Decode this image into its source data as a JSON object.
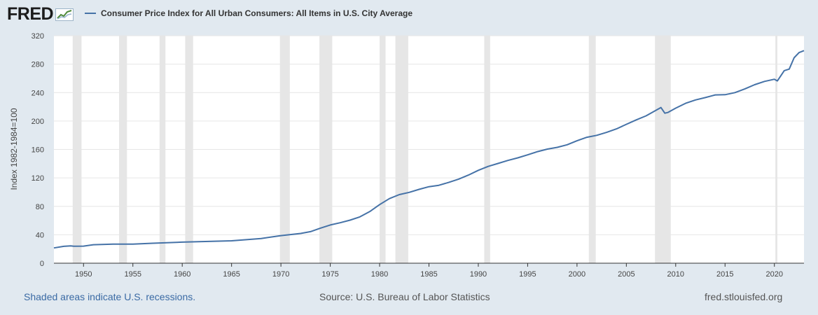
{
  "header": {
    "logo_text": "FRED",
    "legend_label": "Consumer Price Index for All Urban Consumers: All Items in U.S. City Average",
    "series_color": "#4572a7"
  },
  "footer": {
    "note": "Shaded areas indicate U.S. recessions.",
    "source": "Source: U.S. Bureau of Labor Statistics",
    "site": "fred.stlouisfed.org"
  },
  "chart_data": {
    "type": "line",
    "title": "",
    "xlabel": "",
    "ylabel": "Index 1982-1984=100",
    "xlim": [
      1947,
      2023
    ],
    "ylim": [
      0,
      320
    ],
    "x_ticks": [
      1950,
      1955,
      1960,
      1965,
      1970,
      1975,
      1980,
      1985,
      1990,
      1995,
      2000,
      2005,
      2010,
      2015,
      2020
    ],
    "y_ticks": [
      0,
      40,
      80,
      120,
      160,
      200,
      240,
      280,
      320
    ],
    "grid": true,
    "legend_position": "top-left",
    "recessions": [
      [
        1948.9,
        1949.8
      ],
      [
        1953.6,
        1954.4
      ],
      [
        1957.7,
        1958.3
      ],
      [
        1960.3,
        1961.1
      ],
      [
        1969.9,
        1970.9
      ],
      [
        1973.9,
        1975.2
      ],
      [
        1980.0,
        1980.6
      ],
      [
        1981.6,
        1982.9
      ],
      [
        1990.6,
        1991.2
      ],
      [
        2001.2,
        2001.9
      ],
      [
        2007.9,
        2009.5
      ],
      [
        2020.1,
        2020.3
      ]
    ],
    "series": [
      {
        "name": "Consumer Price Index for All Urban Consumers: All Items in U.S. City Average",
        "x": [
          1947,
          1948,
          1948.7,
          1949,
          1950,
          1951,
          1953,
          1955,
          1957,
          1960,
          1965,
          1968,
          1970,
          1972,
          1973,
          1974,
          1975,
          1976,
          1977,
          1978,
          1979,
          1980,
          1981,
          1982,
          1983,
          1984,
          1985,
          1986,
          1987,
          1988,
          1989,
          1990,
          1991,
          1992,
          1993,
          1994,
          1995,
          1996,
          1997,
          1998,
          1999,
          2000,
          2001,
          2002,
          2003,
          2004,
          2005,
          2006,
          2007,
          2008.5,
          2008.9,
          2009.2,
          2010,
          2011,
          2012,
          2013,
          2014,
          2015,
          2016,
          2017,
          2018,
          2019,
          2020,
          2020.3,
          2021,
          2021.5,
          2022,
          2022.5,
          2023
        ],
        "values": [
          21.5,
          23.7,
          24.3,
          23.8,
          24.0,
          26.0,
          26.8,
          26.8,
          28.1,
          29.6,
          31.5,
          34.8,
          38.8,
          41.8,
          44.4,
          49.3,
          53.8,
          56.9,
          60.6,
          65.2,
          72.6,
          82.4,
          90.9,
          96.5,
          99.6,
          103.9,
          107.6,
          109.6,
          113.6,
          118.3,
          124.0,
          130.7,
          136.2,
          140.3,
          144.5,
          148.2,
          152.4,
          156.9,
          160.5,
          163.0,
          166.6,
          172.2,
          177.1,
          179.9,
          184.0,
          188.9,
          195.3,
          201.6,
          207.3,
          219.0,
          211.0,
          212.0,
          218.1,
          224.9,
          229.6,
          233.0,
          236.7,
          237.0,
          240.0,
          245.1,
          251.1,
          255.7,
          258.8,
          256.4,
          270.9,
          273.0,
          289.0,
          296.3,
          299.0
        ]
      }
    ]
  }
}
